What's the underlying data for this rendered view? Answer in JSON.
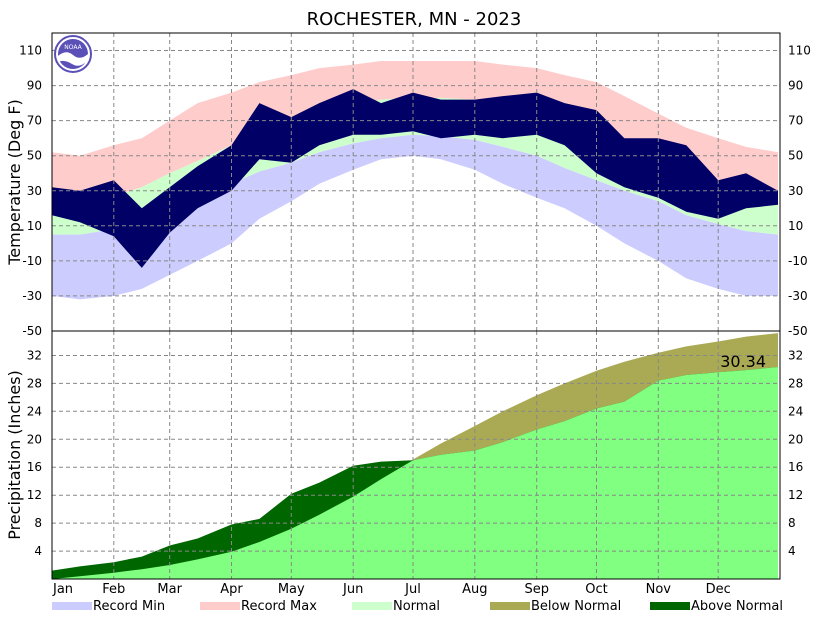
{
  "chart_data": [
    {
      "type": "area",
      "panel": "temperature",
      "title": "ROCHESTER, MN - 2023",
      "ylabel": "Temperature (Deg F)",
      "ylim": [
        -50,
        120
      ],
      "yticks": [
        -50,
        -30,
        -10,
        10,
        30,
        50,
        70,
        90,
        110
      ],
      "months": [
        "Jan",
        "Feb",
        "Mar",
        "Apr",
        "May",
        "Jun",
        "Jul",
        "Aug",
        "Sep",
        "Oct",
        "Nov",
        "Dec"
      ],
      "month_start_day": [
        1,
        32,
        60,
        91,
        121,
        152,
        182,
        213,
        244,
        274,
        305,
        335
      ],
      "days_in_year": 365,
      "x_days": [
        1,
        15,
        32,
        46,
        60,
        74,
        91,
        105,
        121,
        135,
        152,
        166,
        182,
        196,
        213,
        227,
        244,
        258,
        274,
        288,
        305,
        319,
        335,
        349,
        365
      ],
      "record_max": [
        52,
        50,
        56,
        60,
        70,
        80,
        86,
        92,
        96,
        100,
        102,
        104,
        104,
        104,
        104,
        102,
        100,
        96,
        92,
        84,
        74,
        66,
        60,
        55,
        52
      ],
      "normal_max": [
        24,
        24,
        27,
        32,
        40,
        47,
        56,
        62,
        69,
        75,
        79,
        82,
        83,
        83,
        82,
        79,
        75,
        69,
        60,
        52,
        43,
        34,
        28,
        25,
        24
      ],
      "normal_min": [
        5,
        5,
        8,
        12,
        20,
        27,
        34,
        41,
        46,
        52,
        57,
        60,
        62,
        61,
        59,
        55,
        50,
        43,
        36,
        30,
        24,
        16,
        11,
        7,
        5
      ],
      "record_min": [
        -30,
        -32,
        -30,
        -26,
        -18,
        -10,
        0,
        14,
        24,
        34,
        42,
        48,
        50,
        48,
        42,
        34,
        26,
        20,
        10,
        0,
        -10,
        -20,
        -26,
        -30,
        -30
      ],
      "observed_max": [
        32,
        30,
        36,
        20,
        32,
        44,
        56,
        80,
        72,
        80,
        88,
        80,
        86,
        82,
        82,
        84,
        86,
        80,
        76,
        60,
        60,
        56,
        36,
        40,
        30
      ],
      "observed_min": [
        16,
        12,
        4,
        -14,
        6,
        20,
        30,
        48,
        46,
        56,
        62,
        62,
        64,
        60,
        62,
        60,
        62,
        56,
        40,
        32,
        26,
        18,
        14,
        20,
        22
      ],
      "colors": {
        "record_min": "#ccccff",
        "record_max": "#ffcccc",
        "normal": "#ccffcc",
        "observed": "#000066"
      }
    },
    {
      "type": "area",
      "panel": "precipitation",
      "ylabel": "Precipitation (Inches)",
      "ylim": [
        0,
        35.5
      ],
      "yticks": [
        4,
        8,
        12,
        16,
        20,
        24,
        28,
        32
      ],
      "annotation": "30.34",
      "x_days": [
        1,
        15,
        32,
        46,
        60,
        74,
        91,
        105,
        121,
        135,
        152,
        166,
        182,
        196,
        213,
        227,
        244,
        258,
        274,
        288,
        305,
        319,
        335,
        349,
        365
      ],
      "normal_cumulative": [
        0.0,
        0.4,
        0.9,
        1.4,
        2.0,
        2.8,
        3.9,
        5.3,
        7.2,
        9.2,
        11.8,
        14.3,
        17.1,
        19.4,
        21.9,
        24.0,
        26.3,
        28.0,
        29.8,
        31.1,
        32.4,
        33.3,
        34.0,
        34.7,
        35.2
      ],
      "observed_cumulative": [
        1.2,
        1.8,
        2.4,
        3.2,
        4.8,
        5.8,
        7.8,
        8.6,
        12.2,
        13.8,
        16.2,
        16.8,
        17.0,
        17.8,
        18.4,
        19.6,
        21.4,
        22.6,
        24.4,
        25.4,
        28.4,
        29.2,
        29.6,
        29.9,
        30.34
      ],
      "colors": {
        "observed_fill": "#80ff80",
        "below_normal": "#aaaa55",
        "above_normal": "#006600"
      }
    }
  ],
  "legend": [
    {
      "label": "Record Min",
      "color": "#ccccff"
    },
    {
      "label": "Record Max",
      "color": "#ffcccc"
    },
    {
      "label": "Normal",
      "color": "#ccffcc"
    },
    {
      "label": "Below Normal",
      "color": "#aaaa55"
    },
    {
      "label": "Above Normal",
      "color": "#006600"
    }
  ],
  "logo": {
    "text": "NOAA",
    "color": "#5b4fb8"
  }
}
